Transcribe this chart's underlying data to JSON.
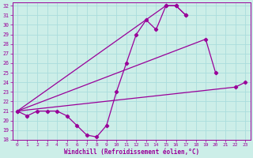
{
  "xlabel": "Windchill (Refroidissement éolien,°C)",
  "background_color": "#cceee8",
  "line_color": "#990099",
  "grid_color": "#aadddd",
  "xlim": [
    -0.5,
    23.5
  ],
  "ylim": [
    18,
    32.3
  ],
  "xticks": [
    0,
    1,
    2,
    3,
    4,
    5,
    6,
    7,
    8,
    9,
    10,
    11,
    12,
    13,
    14,
    15,
    16,
    17,
    18,
    19,
    20,
    21,
    22,
    23
  ],
  "yticks": [
    18,
    19,
    20,
    21,
    22,
    23,
    24,
    25,
    26,
    27,
    28,
    29,
    30,
    31,
    32
  ],
  "curve_x": [
    0,
    1,
    2,
    3,
    4,
    5,
    6,
    7,
    8,
    9,
    10,
    11,
    12,
    13,
    14,
    15,
    16,
    17
  ],
  "curve_y": [
    21.0,
    20.5,
    21.0,
    21.0,
    21.0,
    20.5,
    19.5,
    18.5,
    18.3,
    19.5,
    23.0,
    26.0,
    29.0,
    30.5,
    29.5,
    32.0,
    32.0,
    31.0
  ],
  "line1_x": [
    0,
    15,
    16,
    17
  ],
  "line1_y": [
    21.0,
    32.0,
    32.0,
    31.0
  ],
  "line2_x": [
    0,
    19,
    20
  ],
  "line2_y": [
    21.0,
    28.5,
    25.0
  ],
  "line3_x": [
    0,
    22,
    23
  ],
  "line3_y": [
    21.0,
    23.5,
    24.0
  ],
  "marker_pts": [
    [
      15,
      32.0
    ],
    [
      16,
      32.0
    ],
    [
      17,
      31.0
    ],
    [
      19,
      28.5
    ],
    [
      20,
      25.0
    ],
    [
      22,
      23.5
    ],
    [
      23,
      24.0
    ]
  ]
}
